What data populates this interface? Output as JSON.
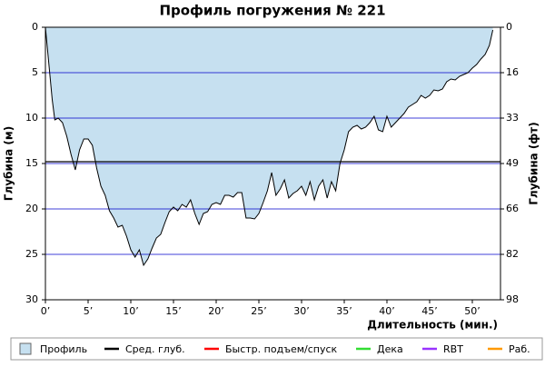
{
  "chart_data": {
    "type": "area",
    "title": "Профиль погружения № 221",
    "y_label": "Глубина (м)",
    "y2_label": "Глубина (фт)",
    "x_label": "Длительность (мин.)",
    "xlim": [
      0,
      53.3
    ],
    "ylim": [
      0,
      30
    ],
    "y2lim": [
      0,
      98.4
    ],
    "inverted_y": true,
    "grid": true,
    "xticks": [
      {
        "value": 0,
        "label": "0’"
      },
      {
        "value": 5,
        "label": "5’"
      },
      {
        "value": 10,
        "label": "10’"
      },
      {
        "value": 15,
        "label": "15’"
      },
      {
        "value": 20,
        "label": "20’"
      },
      {
        "value": 25,
        "label": "25’"
      },
      {
        "value": 30,
        "label": "30’"
      },
      {
        "value": 35,
        "label": "35’"
      },
      {
        "value": 40,
        "label": "40’"
      },
      {
        "value": 45,
        "label": "45’"
      },
      {
        "value": 50,
        "label": "50’"
      }
    ],
    "yticks": [
      0,
      5,
      10,
      15,
      20,
      25,
      30
    ],
    "y2ticks": [
      {
        "value": 0,
        "label": "0"
      },
      {
        "value": 16.4,
        "label": "16"
      },
      {
        "value": 32.8,
        "label": "33"
      },
      {
        "value": 49.2,
        "label": "49"
      },
      {
        "value": 65.6,
        "label": "66"
      },
      {
        "value": 82,
        "label": "82"
      },
      {
        "value": 98.4,
        "label": "98"
      }
    ],
    "mean_depth": 14.8,
    "x": [
      0,
      0.2,
      0.5,
      0.8,
      1.1,
      1.5,
      2,
      2.5,
      3,
      3.5,
      4,
      4.5,
      5,
      5.5,
      6,
      6.5,
      7,
      7.5,
      8,
      8.5,
      9,
      9.5,
      10,
      10.5,
      11,
      11.5,
      12,
      12.5,
      13,
      13.5,
      14,
      14.5,
      15,
      15.5,
      16,
      16.5,
      17,
      17.5,
      18,
      18.5,
      19,
      19.5,
      20,
      20.5,
      21,
      21.5,
      22,
      22.5,
      23,
      23.5,
      24,
      24.5,
      25,
      25.5,
      26,
      26.5,
      27,
      27.5,
      28,
      28.5,
      29,
      29.5,
      30,
      30.5,
      31,
      31.5,
      32,
      32.5,
      33,
      33.5,
      34,
      34.5,
      35,
      35.5,
      36,
      36.5,
      37,
      37.5,
      38,
      38.5,
      39,
      39.5,
      40,
      40.5,
      41,
      41.5,
      42,
      42.5,
      43,
      43.5,
      44,
      44.5,
      45,
      45.5,
      46,
      46.5,
      47,
      47.5,
      48,
      48.5,
      49,
      49.5,
      50,
      50.5,
      51,
      51.5,
      52,
      52.4
    ],
    "values": [
      0,
      2,
      5,
      8,
      10.2,
      10,
      10.5,
      12,
      14,
      15.7,
      13.5,
      12.3,
      12.3,
      13,
      15.5,
      17.5,
      18.5,
      20.2,
      21,
      22,
      21.8,
      23,
      24.5,
      25.3,
      24.5,
      26.2,
      25.5,
      24.3,
      23.2,
      22.8,
      21.5,
      20.3,
      19.8,
      20.2,
      19.5,
      19.8,
      19,
      20.5,
      21.7,
      20.5,
      20.3,
      19.5,
      19.3,
      19.5,
      18.5,
      18.5,
      18.7,
      18.2,
      18.2,
      21,
      21,
      21.1,
      20.5,
      19.3,
      18,
      16,
      18.5,
      17.8,
      16.8,
      18.8,
      18.3,
      18,
      17.5,
      18.5,
      17,
      19,
      17.5,
      16.8,
      18.8,
      17,
      18,
      15,
      13.5,
      11.5,
      11,
      10.8,
      11.2,
      11,
      10.5,
      9.8,
      11.3,
      11.5,
      9.8,
      11,
      10.5,
      10,
      9.5,
      8.8,
      8.5,
      8.2,
      7.5,
      7.8,
      7.5,
      6.9,
      7,
      6.8,
      6,
      5.7,
      5.8,
      5.4,
      5.2,
      5,
      4.5,
      4.1,
      3.5,
      3,
      2,
      0.3
    ],
    "fill_color": "#c6e0f0",
    "line_color": "#000000",
    "grid_color": "#0000cc",
    "legend": [
      {
        "name": "Профиль",
        "color": "#c6e0f0"
      },
      {
        "name": "Сред. глуб.",
        "color": "#000000"
      },
      {
        "name": "Быстр. подъем/спуск",
        "color": "#ff0000"
      },
      {
        "name": "Дека",
        "color": "#33dd33"
      },
      {
        "name": "RBT",
        "color": "#9933ff"
      },
      {
        "name": "Раб.",
        "color": "#ff9900"
      }
    ]
  }
}
